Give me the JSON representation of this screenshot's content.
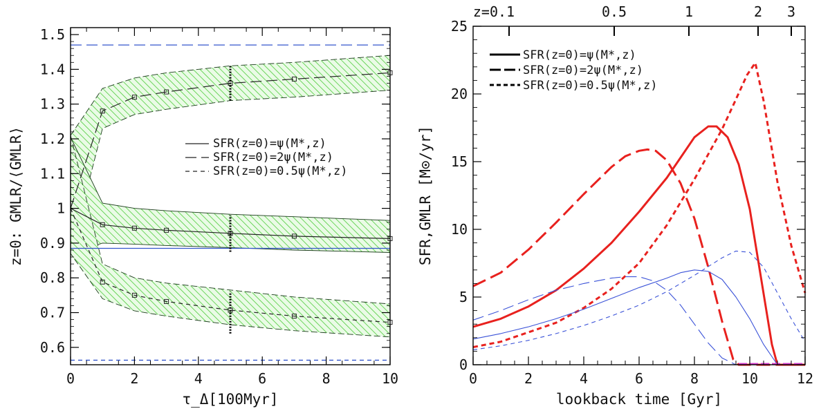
{
  "chart_data": [
    {
      "type": "line",
      "panel": "left",
      "xlabel": "τ_Δ[100Myr]",
      "ylabel": "z=0: GMLR/⟨GMLR⟩",
      "xlim": [
        0,
        10
      ],
      "ylim": [
        0.55,
        1.52
      ],
      "xticks": [
        "0",
        "2",
        "4",
        "6",
        "8",
        "10"
      ],
      "yticks": [
        "0.6",
        "0.7",
        "0.8",
        "0.9",
        "1",
        "1.1",
        "1.2",
        "1.3",
        "1.4",
        "1.5"
      ],
      "legend": {
        "placement": "center-right",
        "entries": [
          {
            "label": "SFR(z=0)=ψ(M*,z)",
            "style": "solid"
          },
          {
            "label": "SFR(z=0)=2ψ(M*,z)",
            "style": "long-dash"
          },
          {
            "label": "SFR(z=0)=0.5ψ(M*,z)",
            "style": "short-dash"
          }
        ]
      },
      "band_color": "#4ccc3a",
      "reference_color": "#3355cc",
      "reference_lines": [
        {
          "name": "SFR(z=0)=2ψ(M*,z)",
          "y": 1.47,
          "style": "long-dash"
        },
        {
          "name": "SFR(z=0)=ψ(M*,z)",
          "y": 0.885,
          "style": "solid"
        },
        {
          "name": "SFR(z=0)=0.5ψ(M*,z)",
          "y": 0.563,
          "style": "short-dash"
        }
      ],
      "series": [
        {
          "name": "SFR(z=0)=2ψ(M*,z)",
          "style": "long-dash",
          "x": [
            0,
            1,
            2,
            3,
            5,
            7,
            10
          ],
          "y": [
            1.0,
            1.28,
            1.32,
            1.335,
            1.36,
            1.372,
            1.39
          ],
          "upper": [
            1.21,
            1.345,
            1.375,
            1.39,
            1.41,
            1.42,
            1.44
          ],
          "lower": [
            0.87,
            1.23,
            1.27,
            1.285,
            1.31,
            1.32,
            1.34
          ]
        },
        {
          "name": "SFR(z=0)=ψ(M*,z)",
          "style": "solid",
          "x": [
            0,
            1,
            2,
            3,
            5,
            7,
            10
          ],
          "y": [
            1.0,
            0.953,
            0.943,
            0.937,
            0.928,
            0.92,
            0.913
          ],
          "upper": [
            1.205,
            1.015,
            1.0,
            0.993,
            0.983,
            0.976,
            0.965
          ],
          "lower": [
            0.87,
            0.9,
            0.897,
            0.893,
            0.887,
            0.88,
            0.873
          ]
        },
        {
          "name": "SFR(z=0)=0.5ψ(M*,z)",
          "style": "short-dash",
          "x": [
            0,
            1,
            2,
            3,
            5,
            7,
            10
          ],
          "y": [
            1.0,
            0.788,
            0.75,
            0.732,
            0.707,
            0.69,
            0.672
          ],
          "upper": [
            1.21,
            0.84,
            0.8,
            0.785,
            0.765,
            0.745,
            0.725
          ],
          "lower": [
            0.87,
            0.74,
            0.705,
            0.69,
            0.665,
            0.648,
            0.63
          ]
        }
      ],
      "markers_x": [
        1,
        2,
        3,
        5,
        7,
        10
      ],
      "vertical_markers": [
        {
          "x": 5,
          "y_range": [
            1.31,
            1.41
          ]
        },
        {
          "x": 5,
          "y_range": [
            0.875,
            0.98
          ]
        },
        {
          "x": 5,
          "y_range": [
            0.64,
            0.76
          ]
        }
      ]
    },
    {
      "type": "line",
      "panel": "right",
      "xlabel": "lookback time [Gyr]",
      "ylabel": "SFR,GMLR [M⊙/yr]",
      "xlim": [
        0,
        12
      ],
      "ylim": [
        0,
        25
      ],
      "xticks": [
        "0",
        "2",
        "4",
        "6",
        "8",
        "10",
        "12"
      ],
      "yticks": [
        "0",
        "5",
        "10",
        "15",
        "20",
        "25"
      ],
      "top_axis": {
        "labels": [
          "z=0.1",
          "0.5",
          "1",
          "2",
          "3"
        ],
        "positions_gyr": [
          1.3,
          5.1,
          7.8,
          10.3,
          11.5
        ]
      },
      "legend": {
        "placement": "top-left",
        "entries": [
          {
            "label": "SFR(z=0)=ψ(M*,z)",
            "style": "solid"
          },
          {
            "label": "SFR(z=0)=2ψ(M*,z)",
            "style": "long-dash"
          },
          {
            "label": "SFR(z=0)=0.5ψ(M*,z)",
            "style": "short-dash"
          }
        ]
      },
      "sfr_color": "#e8211e",
      "gmlr_color": "#3a52d8",
      "series": [
        {
          "name": "SFR(z=0)=ψ(M*,z)",
          "quantity": "SFR",
          "style": "solid",
          "x": [
            0,
            1,
            2,
            3,
            4,
            5,
            6,
            7,
            7.5,
            8,
            8.5,
            8.8,
            9.2,
            9.6,
            10,
            10.4,
            10.8,
            11,
            12
          ],
          "y": [
            2.8,
            3.4,
            4.3,
            5.5,
            7.1,
            9.0,
            11.3,
            13.8,
            15.3,
            16.8,
            17.6,
            17.6,
            16.8,
            14.8,
            11.5,
            6.5,
            1.5,
            0,
            0
          ]
        },
        {
          "name": "SFR(z=0)=2ψ(M*,z)",
          "quantity": "SFR",
          "style": "long-dash",
          "x": [
            0,
            1,
            2,
            3,
            4,
            5,
            5.5,
            6,
            6.3,
            6.6,
            7,
            7.5,
            8,
            8.5,
            9,
            9.4,
            9.6,
            12
          ],
          "y": [
            5.8,
            6.8,
            8.5,
            10.5,
            12.6,
            14.6,
            15.4,
            15.8,
            15.9,
            15.8,
            15.1,
            13.4,
            10.8,
            7.2,
            3.2,
            0.4,
            0,
            0
          ]
        },
        {
          "name": "SFR(z=0)=0.5ψ(M*,z)",
          "quantity": "SFR",
          "style": "short-dash",
          "x": [
            0,
            1,
            2,
            3,
            4,
            5,
            6,
            7,
            8,
            9,
            9.5,
            9.9,
            10.2,
            10.5,
            11,
            11.5,
            12
          ],
          "y": [
            1.3,
            1.7,
            2.4,
            3.1,
            4.2,
            5.6,
            7.5,
            10.3,
            13.7,
            17.4,
            19.6,
            21.4,
            22.3,
            19.5,
            13.5,
            8.8,
            5.3
          ]
        },
        {
          "name": "SFR(z=0)=ψ(M*,z)",
          "quantity": "GMLR",
          "style": "solid",
          "x": [
            0,
            1,
            2,
            3,
            4,
            5,
            6,
            7,
            7.5,
            8,
            8.5,
            9,
            9.5,
            10,
            10.5,
            11,
            12
          ],
          "y": [
            1.9,
            2.3,
            2.8,
            3.4,
            4.1,
            4.9,
            5.7,
            6.4,
            6.8,
            7.0,
            6.9,
            6.3,
            5.0,
            3.4,
            1.5,
            0,
            0
          ]
        },
        {
          "name": "SFR(z=0)=2ψ(M*,z)",
          "quantity": "GMLR",
          "style": "long-dash",
          "x": [
            0,
            1,
            2,
            3,
            4,
            5,
            5.5,
            6,
            6.5,
            7,
            7.5,
            8,
            8.5,
            9,
            9.5,
            12
          ],
          "y": [
            3.3,
            4.0,
            4.8,
            5.5,
            6.0,
            6.4,
            6.5,
            6.5,
            6.2,
            5.5,
            4.4,
            3.0,
            1.6,
            0.5,
            0,
            0
          ]
        },
        {
          "name": "SFR(z=0)=0.5ψ(M*,z)",
          "quantity": "GMLR",
          "style": "short-dash",
          "x": [
            0,
            1,
            2,
            3,
            4,
            5,
            6,
            7,
            8,
            9,
            9.5,
            10,
            10.5,
            11,
            11.5,
            12
          ],
          "y": [
            1.1,
            1.4,
            1.8,
            2.3,
            2.9,
            3.6,
            4.4,
            5.4,
            6.6,
            7.9,
            8.4,
            8.3,
            7.2,
            5.3,
            3.4,
            1.7
          ]
        }
      ],
      "baseline_color": "#d03ac8"
    }
  ]
}
